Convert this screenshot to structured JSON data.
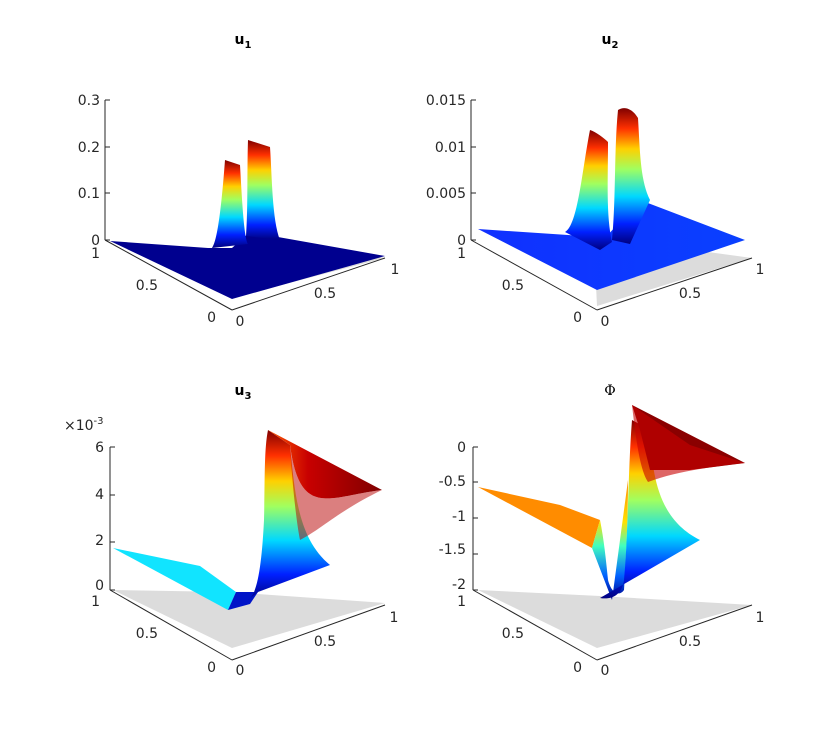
{
  "chart_data": [
    {
      "type": "surface",
      "title": "u",
      "title_subscript": "1",
      "zlim": [
        0,
        0.3
      ],
      "z_ticks": [
        "0",
        "0.1",
        "0.2",
        "0.3"
      ],
      "x_ticks": [
        "0",
        "0.5",
        "1"
      ],
      "y_ticks": [
        "0",
        "0.5",
        "1"
      ],
      "grid": false,
      "colormap": "jet",
      "shadow_color": "#d9d9d9",
      "peaks": [
        {
          "center_x": 0.55,
          "width": 0.03,
          "height": 0.18,
          "color": "#e23a12"
        },
        {
          "center_x": 0.68,
          "width": 0.03,
          "height": 0.24,
          "color": "#8a0000"
        }
      ]
    },
    {
      "type": "surface",
      "title": "u",
      "title_subscript": "2",
      "zlim": [
        0,
        0.015
      ],
      "z_ticks": [
        "0",
        "0.005",
        "0.01",
        "0.015"
      ],
      "x_ticks": [
        "0",
        "0.5",
        "1"
      ],
      "y_ticks": [
        "0",
        "0.5",
        "1"
      ],
      "grid": false,
      "colormap": "jet",
      "shadow_color": "#d9d9d9",
      "peaks": [
        {
          "center_x": 0.55,
          "width": 0.04,
          "height": 0.0125,
          "color": "#d41a0a"
        },
        {
          "center_x": 0.68,
          "width": 0.04,
          "height": 0.0148,
          "color": "#8a0000"
        }
      ]
    },
    {
      "type": "surface",
      "title": "u",
      "title_subscript": "3",
      "zlim": [
        0,
        0.006
      ],
      "z_ticks": [
        "0",
        "2",
        "4",
        "6"
      ],
      "z_multiplier": "×10",
      "z_exponent": "-3",
      "x_ticks": [
        "0",
        "0.5",
        "1"
      ],
      "y_ticks": [
        "0",
        "0.5",
        "1"
      ],
      "grid": false,
      "colormap": "jet",
      "shadow_color": "#d9d9d9",
      "plateau_left": 0.0016,
      "plateau_right": 0.0058
    },
    {
      "type": "surface",
      "title": "Φ",
      "zlim": [
        -2,
        0
      ],
      "z_ticks": [
        "-2",
        "-1.5",
        "-1",
        "-0.5",
        "0"
      ],
      "x_ticks": [
        "0",
        "0.5",
        "1"
      ],
      "y_ticks": [
        "0",
        "0.5",
        "1"
      ],
      "grid": false,
      "colormap": "jet",
      "shadow_color": "#d9d9d9",
      "plateau_left": -0.6,
      "plateau_right": 0.0,
      "min_value": -2.0
    }
  ]
}
